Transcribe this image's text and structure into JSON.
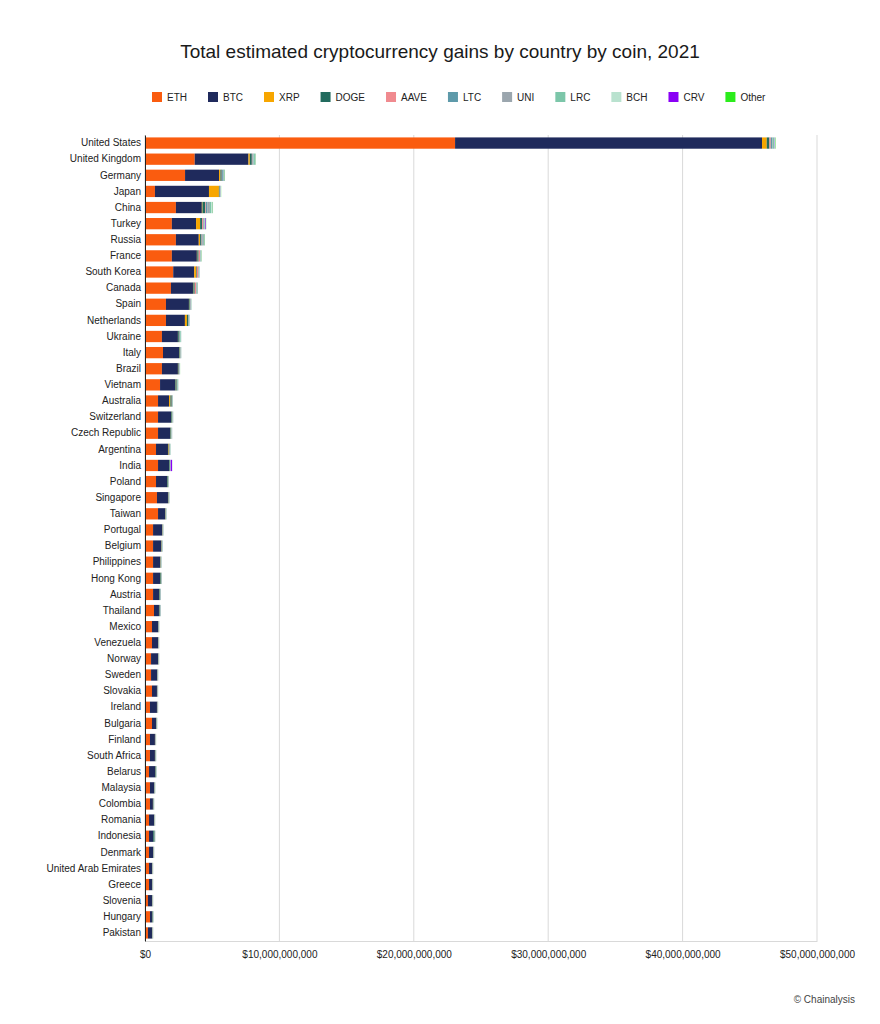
{
  "chart_data": {
    "type": "bar",
    "orientation": "horizontal",
    "stacked": true,
    "grid": true,
    "legend": "top",
    "title": "Total estimated cryptocurrency gains by country by coin, 2021",
    "source": "© Chainalysis",
    "categories": [
      "United States",
      "United Kingdom",
      "Germany",
      "Japan",
      "China",
      "Turkey",
      "Russia",
      "France",
      "South Korea",
      "Canada",
      "Spain",
      "Netherlands",
      "Ukraine",
      "Italy",
      "Brazil",
      "Vietnam",
      "Australia",
      "Switzerland",
      "Czech Republic",
      "Argentina",
      "India",
      "Poland",
      "Singapore",
      "Taiwan",
      "Portugal",
      "Belgium",
      "Philippines",
      "Hong Kong",
      "Austria",
      "Thailand",
      "Mexico",
      "Venezuela",
      "Norway",
      "Sweden",
      "Slovakia",
      "Ireland",
      "Bulgaria",
      "Finland",
      "South Africa",
      "Belarus",
      "Malaysia",
      "Colombia",
      "Romania",
      "Indonesia",
      "Denmark",
      "United Arab Emirates",
      "Greece",
      "Slovenia",
      "Hungary",
      "Pakistan"
    ],
    "xlim": [
      0,
      50000000000
    ],
    "xticks": [
      {
        "value": 0,
        "label": "$0"
      },
      {
        "value": 10000000000,
        "label": "$10,000,000,000"
      },
      {
        "value": 20000000000,
        "label": "$20,000,000,000"
      },
      {
        "value": 30000000000,
        "label": "$30,000,000,000"
      },
      {
        "value": 40000000000,
        "label": "$40,000,000,000"
      },
      {
        "value": 50000000000,
        "label": "$50,000,000,000"
      }
    ],
    "series": [
      {
        "name": "ETH",
        "color": "#fa5c0f",
        "values": [
          23070000000,
          3700000000,
          2980000000,
          740000000,
          2300000000,
          2000000000,
          2300000000,
          2000000000,
          2100000000,
          1930000000,
          1560000000,
          1560000000,
          1260000000,
          1340000000,
          1260000000,
          1120000000,
          970000000,
          970000000,
          970000000,
          820000000,
          970000000,
          820000000,
          890000000,
          970000000,
          600000000,
          600000000,
          600000000,
          600000000,
          600000000,
          670000000,
          520000000,
          520000000,
          450000000,
          450000000,
          520000000,
          370000000,
          520000000,
          370000000,
          370000000,
          300000000,
          370000000,
          370000000,
          300000000,
          300000000,
          300000000,
          300000000,
          300000000,
          220000000,
          370000000,
          220000000
        ]
      },
      {
        "name": "BTC",
        "color": "#1f2a5c",
        "values": [
          22840000000,
          4000000000,
          2530000000,
          4020000000,
          1930000000,
          1800000000,
          1700000000,
          1860000000,
          1560000000,
          1640000000,
          1710000000,
          1410000000,
          1190000000,
          1190000000,
          1190000000,
          1120000000,
          820000000,
          970000000,
          890000000,
          890000000,
          820000000,
          820000000,
          820000000,
          520000000,
          670000000,
          600000000,
          520000000,
          520000000,
          450000000,
          370000000,
          450000000,
          450000000,
          520000000,
          450000000,
          370000000,
          520000000,
          300000000,
          370000000,
          370000000,
          450000000,
          300000000,
          220000000,
          370000000,
          300000000,
          300000000,
          220000000,
          220000000,
          300000000,
          150000000,
          300000000
        ]
      },
      {
        "name": "XRP",
        "color": "#f7a600",
        "values": [
          350000000,
          100000000,
          100000000,
          740000000,
          50000000,
          300000000,
          100000000,
          30000000,
          150000000,
          30000000,
          30000000,
          150000000,
          20000000,
          30000000,
          20000000,
          20000000,
          100000000,
          20000000,
          20000000,
          50000000,
          20000000,
          20000000,
          20000000,
          20000000,
          20000000,
          20000000,
          20000000,
          20000000,
          20000000,
          20000000,
          10000000,
          10000000,
          10000000,
          10000000,
          10000000,
          10000000,
          10000000,
          10000000,
          10000000,
          10000000,
          10000000,
          10000000,
          10000000,
          10000000,
          10000000,
          10000000,
          10000000,
          10000000,
          10000000,
          10000000
        ]
      },
      {
        "name": "DOGE",
        "color": "#226b5e",
        "values": [
          200000000,
          150000000,
          100000000,
          50000000,
          200000000,
          150000000,
          100000000,
          100000000,
          50000000,
          100000000,
          50000000,
          100000000,
          100000000,
          50000000,
          50000000,
          100000000,
          100000000,
          50000000,
          50000000,
          50000000,
          50000000,
          50000000,
          30000000,
          30000000,
          20000000,
          30000000,
          30000000,
          50000000,
          50000000,
          50000000,
          30000000,
          20000000,
          20000000,
          20000000,
          20000000,
          20000000,
          30000000,
          20000000,
          30000000,
          50000000,
          30000000,
          30000000,
          20000000,
          100000000,
          20000000,
          20000000,
          20000000,
          20000000,
          50000000,
          20000000
        ]
      },
      {
        "name": "AAVE",
        "color": "#f08a8f",
        "values": [
          100000000,
          50000000,
          30000000,
          10000000,
          50000000,
          100000000,
          30000000,
          100000000,
          100000000,
          100000000,
          20000000,
          20000000,
          20000000,
          20000000,
          20000000,
          20000000,
          20000000,
          20000000,
          20000000,
          20000000,
          10000000,
          10000000,
          10000000,
          10000000,
          10000000,
          10000000,
          10000000,
          10000000,
          10000000,
          10000000,
          10000000,
          10000000,
          10000000,
          10000000,
          10000000,
          10000000,
          10000000,
          10000000,
          10000000,
          10000000,
          10000000,
          10000000,
          10000000,
          10000000,
          10000000,
          10000000,
          10000000,
          10000000,
          10000000,
          10000000
        ]
      },
      {
        "name": "LTC",
        "color": "#5e9aaa",
        "values": [
          100000000,
          50000000,
          100000000,
          30000000,
          100000000,
          50000000,
          50000000,
          30000000,
          30000000,
          30000000,
          30000000,
          30000000,
          20000000,
          20000000,
          20000000,
          20000000,
          20000000,
          20000000,
          20000000,
          20000000,
          20000000,
          20000000,
          20000000,
          20000000,
          20000000,
          20000000,
          20000000,
          20000000,
          20000000,
          20000000,
          10000000,
          10000000,
          10000000,
          10000000,
          10000000,
          10000000,
          10000000,
          10000000,
          10000000,
          10000000,
          10000000,
          10000000,
          10000000,
          10000000,
          10000000,
          10000000,
          10000000,
          10000000,
          10000000,
          10000000
        ]
      },
      {
        "name": "UNI",
        "color": "#9ba6ae",
        "values": [
          50000000,
          30000000,
          30000000,
          20000000,
          200000000,
          30000000,
          100000000,
          20000000,
          20000000,
          20000000,
          20000000,
          20000000,
          10000000,
          10000000,
          10000000,
          10000000,
          10000000,
          10000000,
          10000000,
          10000000,
          10000000,
          10000000,
          10000000,
          10000000,
          10000000,
          10000000,
          10000000,
          10000000,
          10000000,
          10000000,
          10000000,
          10000000,
          10000000,
          10000000,
          10000000,
          10000000,
          10000000,
          10000000,
          10000000,
          10000000,
          10000000,
          10000000,
          10000000,
          10000000,
          10000000,
          10000000,
          10000000,
          10000000,
          10000000,
          10000000
        ]
      },
      {
        "name": "LRC",
        "color": "#7cc6a9",
        "values": [
          100000000,
          100000000,
          30000000,
          20000000,
          100000000,
          30000000,
          30000000,
          20000000,
          20000000,
          50000000,
          20000000,
          20000000,
          50000000,
          20000000,
          20000000,
          50000000,
          20000000,
          20000000,
          20000000,
          20000000,
          10000000,
          10000000,
          10000000,
          10000000,
          10000000,
          10000000,
          10000000,
          10000000,
          10000000,
          10000000,
          10000000,
          10000000,
          10000000,
          10000000,
          10000000,
          10000000,
          10000000,
          10000000,
          10000000,
          10000000,
          10000000,
          10000000,
          10000000,
          10000000,
          10000000,
          10000000,
          10000000,
          10000000,
          10000000,
          10000000
        ]
      },
      {
        "name": "BCH",
        "color": "#b9e2cf",
        "values": [
          50000000,
          20000000,
          20000000,
          20000000,
          100000000,
          20000000,
          20000000,
          10000000,
          10000000,
          10000000,
          10000000,
          10000000,
          10000000,
          10000000,
          10000000,
          10000000,
          10000000,
          10000000,
          10000000,
          10000000,
          5000000,
          5000000,
          5000000,
          5000000,
          5000000,
          5000000,
          5000000,
          5000000,
          5000000,
          5000000,
          5000000,
          5000000,
          5000000,
          5000000,
          5000000,
          5000000,
          5000000,
          5000000,
          5000000,
          5000000,
          5000000,
          5000000,
          5000000,
          5000000,
          5000000,
          5000000,
          5000000,
          5000000,
          5000000,
          5000000
        ]
      },
      {
        "name": "CRV",
        "color": "#8a00f5",
        "values": [
          20000000,
          10000000,
          10000000,
          5000000,
          10000000,
          50000000,
          10000000,
          10000000,
          10000000,
          10000000,
          5000000,
          5000000,
          5000000,
          5000000,
          5000000,
          5000000,
          5000000,
          5000000,
          5000000,
          5000000,
          100000000,
          5000000,
          5000000,
          5000000,
          5000000,
          5000000,
          5000000,
          5000000,
          5000000,
          5000000,
          5000000,
          5000000,
          5000000,
          5000000,
          5000000,
          5000000,
          5000000,
          5000000,
          5000000,
          5000000,
          5000000,
          5000000,
          5000000,
          5000000,
          5000000,
          5000000,
          5000000,
          5000000,
          5000000,
          5000000
        ]
      },
      {
        "name": "Other",
        "color": "#2cec1c",
        "values": [
          30000000,
          20000000,
          20000000,
          10000000,
          20000000,
          20000000,
          20000000,
          20000000,
          10000000,
          10000000,
          5000000,
          5000000,
          5000000,
          5000000,
          5000000,
          5000000,
          5000000,
          5000000,
          5000000,
          5000000,
          5000000,
          5000000,
          5000000,
          5000000,
          5000000,
          5000000,
          5000000,
          5000000,
          5000000,
          5000000,
          5000000,
          5000000,
          5000000,
          5000000,
          5000000,
          5000000,
          5000000,
          5000000,
          5000000,
          5000000,
          5000000,
          5000000,
          5000000,
          5000000,
          5000000,
          5000000,
          5000000,
          5000000,
          5000000,
          5000000
        ]
      }
    ]
  }
}
